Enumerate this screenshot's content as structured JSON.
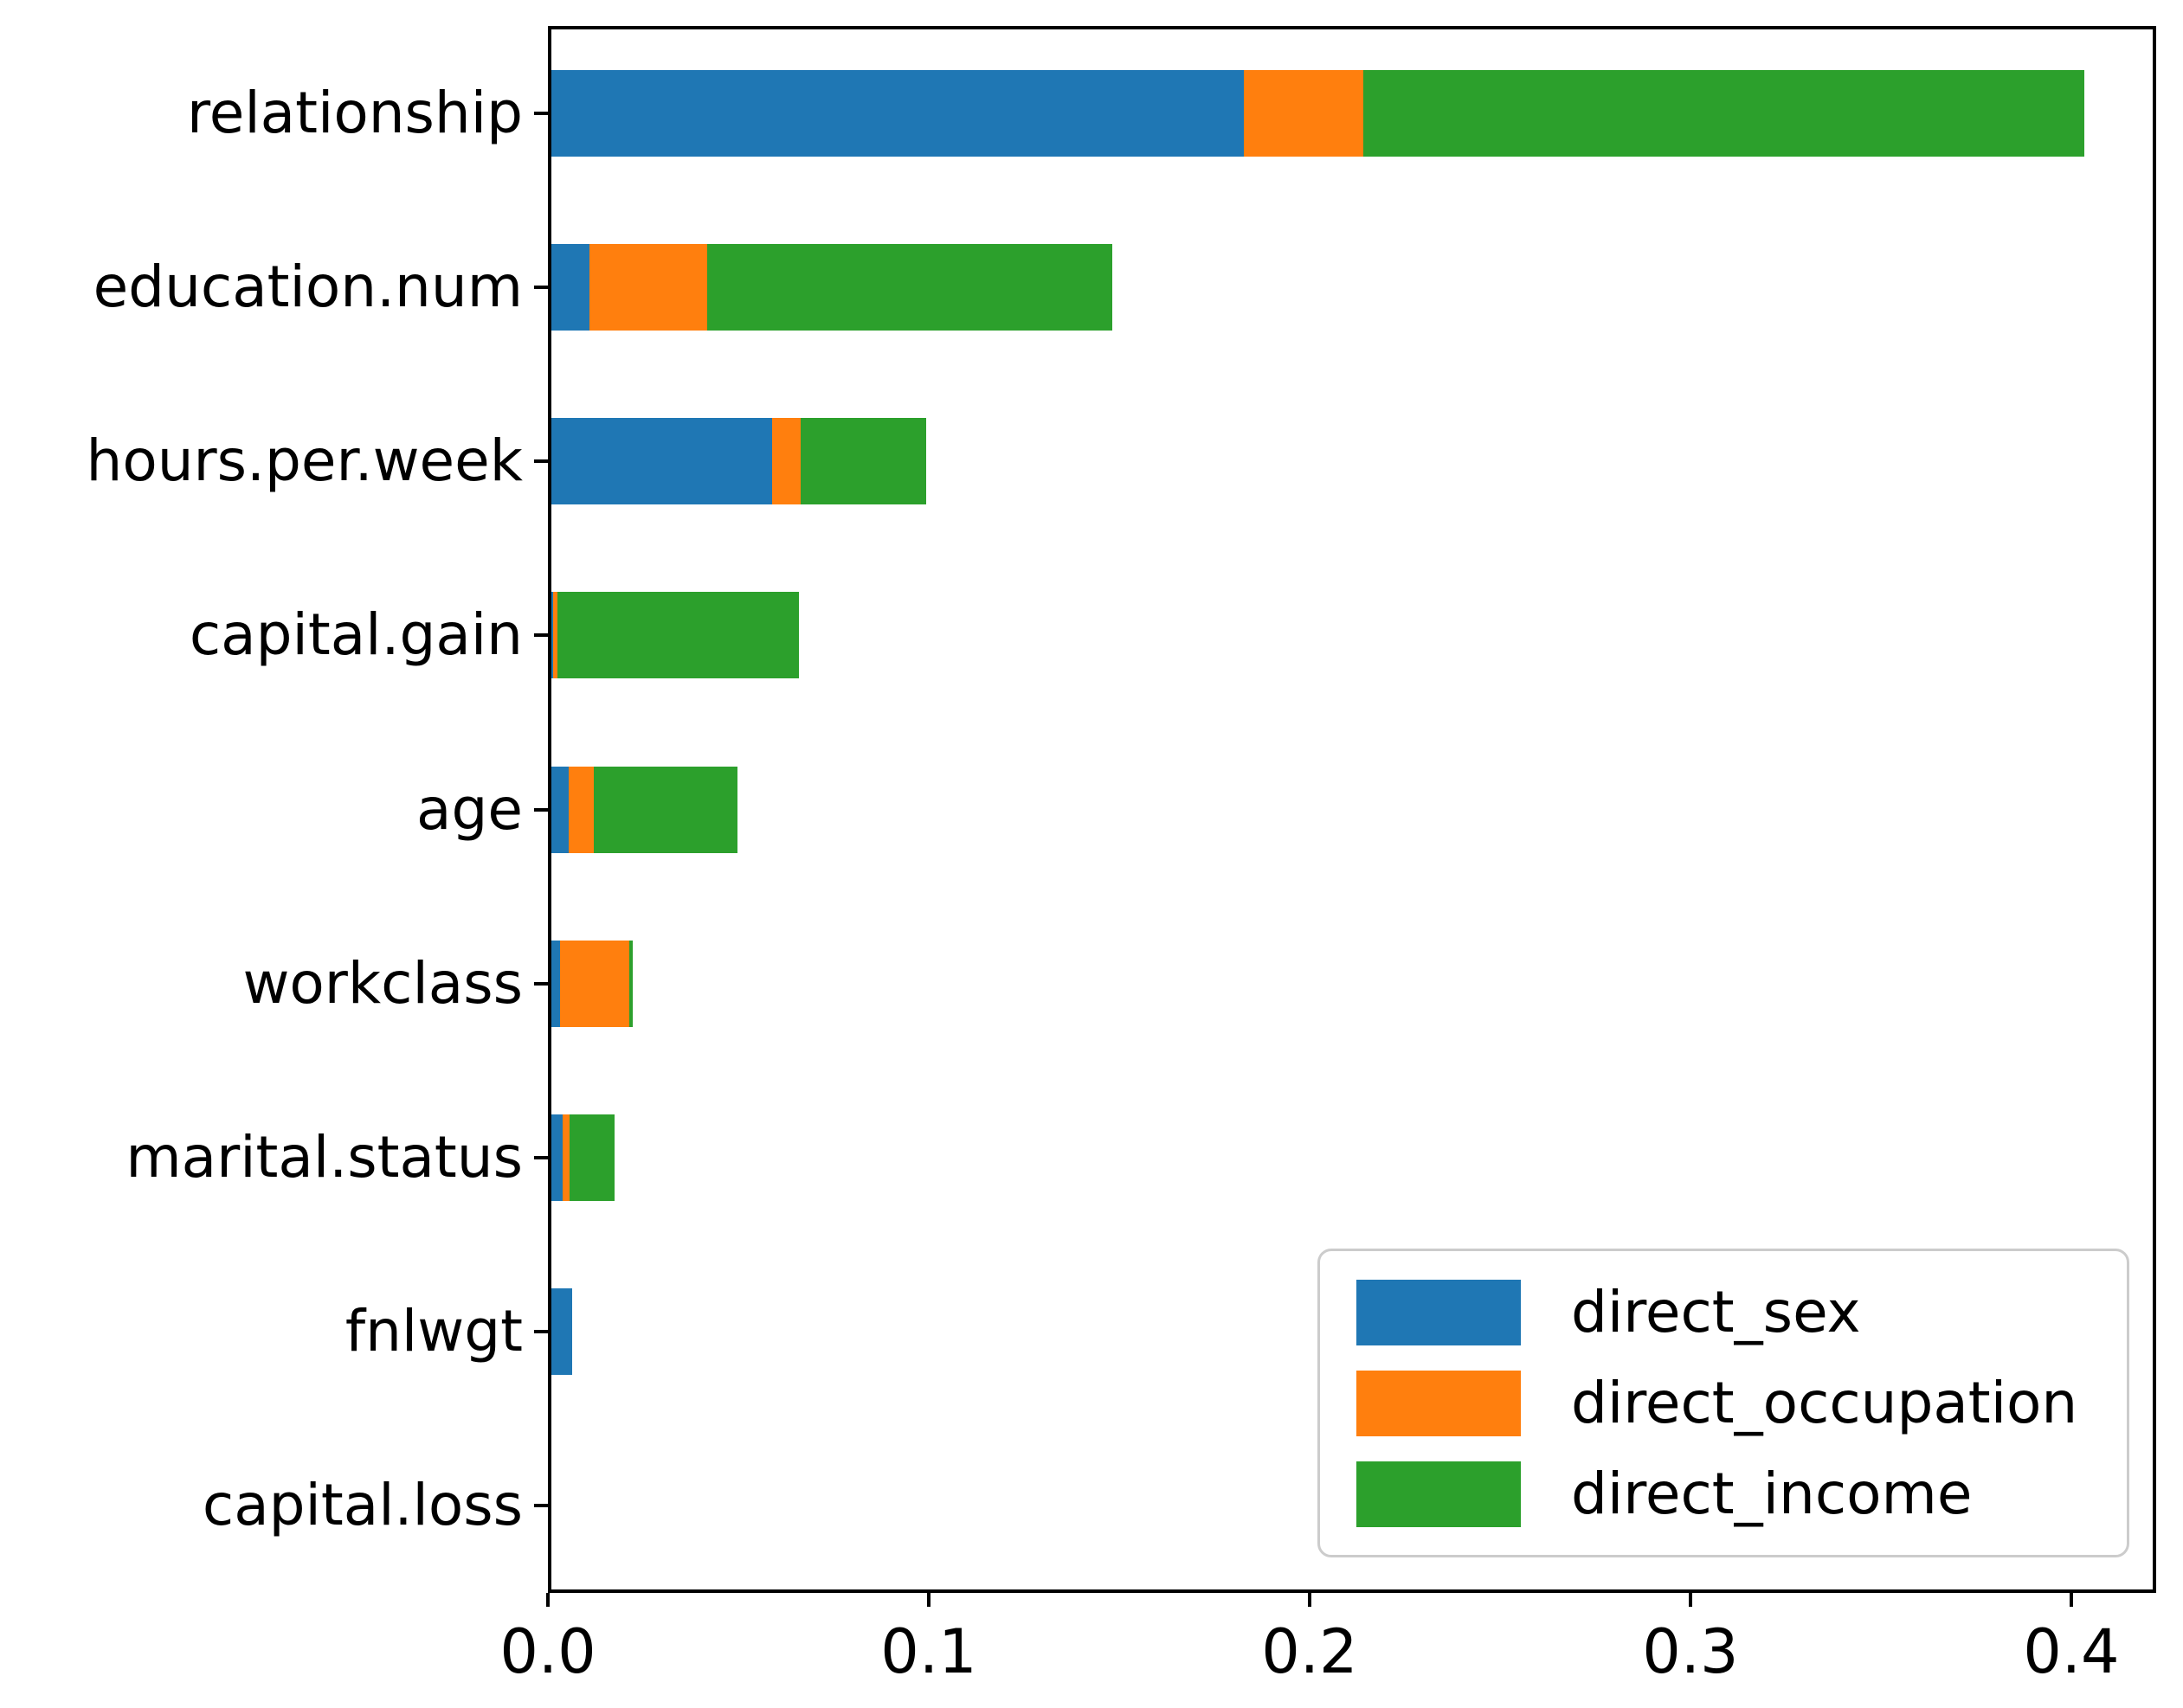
{
  "chart_data": {
    "type": "bar",
    "orientation": "horizontal",
    "stacked": true,
    "title": "",
    "xlabel": "",
    "ylabel": "",
    "grid": false,
    "legend_position": "lower right",
    "xlim": [
      0.0,
      0.4223
    ],
    "x_ticks": [
      {
        "label": "0.0",
        "value": 0.0
      },
      {
        "label": "0.1",
        "value": 0.1
      },
      {
        "label": "0.2",
        "value": 0.2
      },
      {
        "label": "0.3",
        "value": 0.3
      },
      {
        "label": "0.4",
        "value": 0.4
      }
    ],
    "categories": [
      "relationship",
      "education.num",
      "hours.per.week",
      "capital.gain",
      "age",
      "workclass",
      "marital.status",
      "fnlwgt",
      "capital.loss"
    ],
    "series": [
      {
        "name": "direct_sex",
        "color": "#1f77b4",
        "values": [
          0.1818,
          0.01,
          0.058,
          0.0005,
          0.0045,
          0.0023,
          0.003,
          0.0055,
          0.0
        ]
      },
      {
        "name": "direct_occupation",
        "color": "#ff7f0e",
        "values": [
          0.0314,
          0.0309,
          0.0075,
          0.001,
          0.0066,
          0.0182,
          0.0018,
          0.0,
          0.0
        ]
      },
      {
        "name": "direct_income",
        "color": "#2ca02c",
        "values": [
          0.1893,
          0.1064,
          0.033,
          0.0634,
          0.0377,
          0.0009,
          0.0118,
          0.0,
          0.0
        ]
      }
    ]
  },
  "colors": {
    "axis": "#000000",
    "legend_border": "#cccccc",
    "background": "#ffffff"
  }
}
